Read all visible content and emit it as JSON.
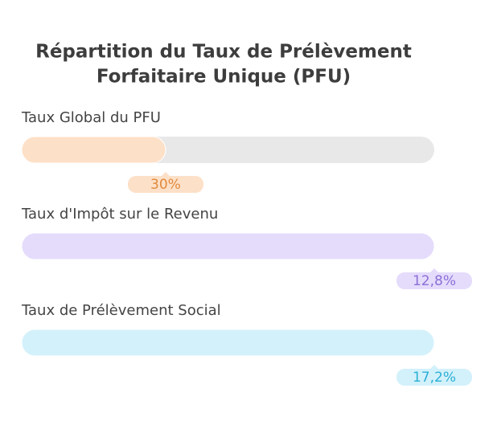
{
  "chart_data": {
    "type": "progress",
    "title": [
      "Répartition du Taux de Prélèvement",
      "Forfaitaire Unique (PFU)"
    ],
    "bars": [
      {
        "label": "Taux Global du PFU",
        "value": 30,
        "value_label": "30%",
        "xlim": [
          0,
          86
        ],
        "color": "#fde0c8",
        "text_color": "#e08a3c"
      },
      {
        "label": "Taux d'Impôt sur le Revenu",
        "value": 12.8,
        "value_label": "12,8%",
        "xlim": [
          0,
          12.8
        ],
        "color": "#e5dcfc",
        "text_color": "#8b6fd6"
      },
      {
        "label": "Taux de Prélèvement Social",
        "value": 17.2,
        "value_label": "17,2%",
        "xlim": [
          0,
          17.2
        ],
        "color": "#d3f1fb",
        "text_color": "#2bb0d6"
      }
    ],
    "track_color": "#e8e8e8"
  }
}
